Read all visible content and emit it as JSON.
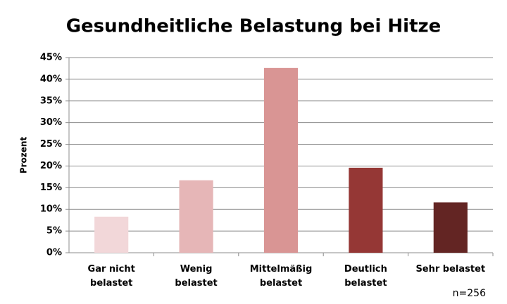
{
  "chart_data": {
    "type": "bar",
    "title": "Gesundheitliche Belastung bei Hitze",
    "y_label": "Prozent",
    "annotation": "n=256",
    "categories": [
      "Gar nicht\nbelastet",
      "Wenig\nbelastet",
      "Mittelmäßig\nbelastet",
      "Deutlich\nbelastet",
      "Sehr belastet"
    ],
    "values": [
      8.3,
      16.7,
      42.6,
      19.6,
      11.6
    ],
    "colors": [
      "#f2d7d9",
      "#e6b6b7",
      "#d99594",
      "#953735",
      "#632523"
    ],
    "ylim": [
      0,
      45
    ],
    "yticks": [
      {
        "value": 0,
        "label": "0%"
      },
      {
        "value": 5,
        "label": "5%"
      },
      {
        "value": 10,
        "label": "10%"
      },
      {
        "value": 15,
        "label": "15%"
      },
      {
        "value": 20,
        "label": "20%"
      },
      {
        "value": 25,
        "label": "25%"
      },
      {
        "value": 30,
        "label": "30%"
      },
      {
        "value": 35,
        "label": "35%"
      },
      {
        "value": 40,
        "label": "40%"
      },
      {
        "value": 45,
        "label": "45%"
      }
    ],
    "grid": true
  }
}
